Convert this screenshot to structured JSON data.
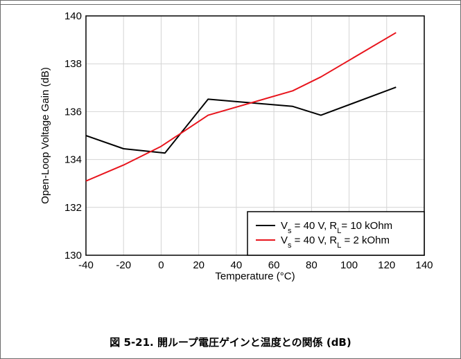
{
  "chart_data": {
    "type": "line",
    "xlabel": "Temperature (°C)",
    "ylabel": "Open-Loop Voltage Gain (dB)",
    "xlim": [
      -40,
      140
    ],
    "ylim": [
      130,
      140
    ],
    "xticks": [
      "-40",
      "-20",
      "0",
      "20",
      "40",
      "60",
      "80",
      "100",
      "120",
      "140"
    ],
    "yticks": [
      "130",
      "132",
      "134",
      "136",
      "138",
      "140"
    ],
    "grid": true,
    "legend_position": "bottom-right",
    "series": [
      {
        "name": "Vs = 40 V, RL= 10 kOhm",
        "legend_parts": {
          "a": "V",
          "a_sub": "s",
          "b": " = 40 V, R",
          "b_sub": "L",
          "c": "= 10 kOhm"
        },
        "color": "#000000",
        "x": [
          -40,
          -20,
          2,
          25,
          70,
          85,
          125
        ],
        "y": [
          135.0,
          134.45,
          134.27,
          136.52,
          136.22,
          135.85,
          137.02
        ]
      },
      {
        "name": "Vs = 40 V, RL = 2 kOhm",
        "legend_parts": {
          "a": "V",
          "a_sub": "s",
          "b": " = 40 V, R",
          "b_sub": "L",
          "c": " = 2 kOhm"
        },
        "color": "#e8141c",
        "x": [
          -40,
          -20,
          0,
          25,
          70,
          85,
          125
        ],
        "y": [
          133.1,
          133.77,
          134.55,
          135.85,
          136.87,
          137.45,
          139.3
        ]
      }
    ]
  },
  "caption": "図 5-21. 開ループ電圧ゲインと温度との関係 (dB)"
}
